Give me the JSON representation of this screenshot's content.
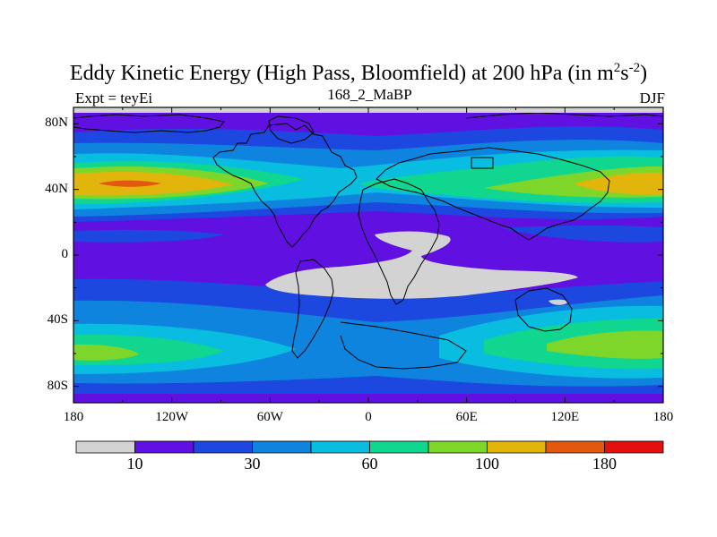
{
  "title": {
    "main": "Eddy Kinetic Energy (High Pass, Bloomfield) at 200 hPa (in m",
    "sup1": "2",
    "mid": "s",
    "sup2": "-2",
    "end": ")"
  },
  "subtitle": {
    "left": "Expt = teyEi",
    "center": "168_2_MaBP",
    "right": "DJF"
  },
  "axes": {
    "lat_ticks": [
      {
        "value": 80,
        "label": "80N"
      },
      {
        "value": 40,
        "label": "40N"
      },
      {
        "value": 0,
        "label": "0"
      },
      {
        "value": -40,
        "label": "40S"
      },
      {
        "value": -80,
        "label": "80S"
      }
    ],
    "lon_ticks": [
      {
        "value": -180,
        "label": "180"
      },
      {
        "value": -120,
        "label": "120W"
      },
      {
        "value": -60,
        "label": "60W"
      },
      {
        "value": 0,
        "label": "0"
      },
      {
        "value": 60,
        "label": "60E"
      },
      {
        "value": 120,
        "label": "120E"
      },
      {
        "value": 180,
        "label": "180"
      }
    ],
    "lon_range": [
      -180,
      180
    ],
    "lat_range": [
      -90,
      90
    ]
  },
  "colorbar": {
    "colors": [
      "#d3d3d3",
      "#6010e0",
      "#1d48e0",
      "#0f84de",
      "#08bde0",
      "#10d690",
      "#7ed62a",
      "#e1b50b",
      "#e3580f",
      "#e31010"
    ],
    "labels": [
      {
        "value": "10",
        "after_box": 1
      },
      {
        "value": "30",
        "after_box": 3
      },
      {
        "value": "60",
        "after_box": 5
      },
      {
        "value": "100",
        "after_box": 7
      },
      {
        "value": "180",
        "after_box": 9
      }
    ]
  }
}
